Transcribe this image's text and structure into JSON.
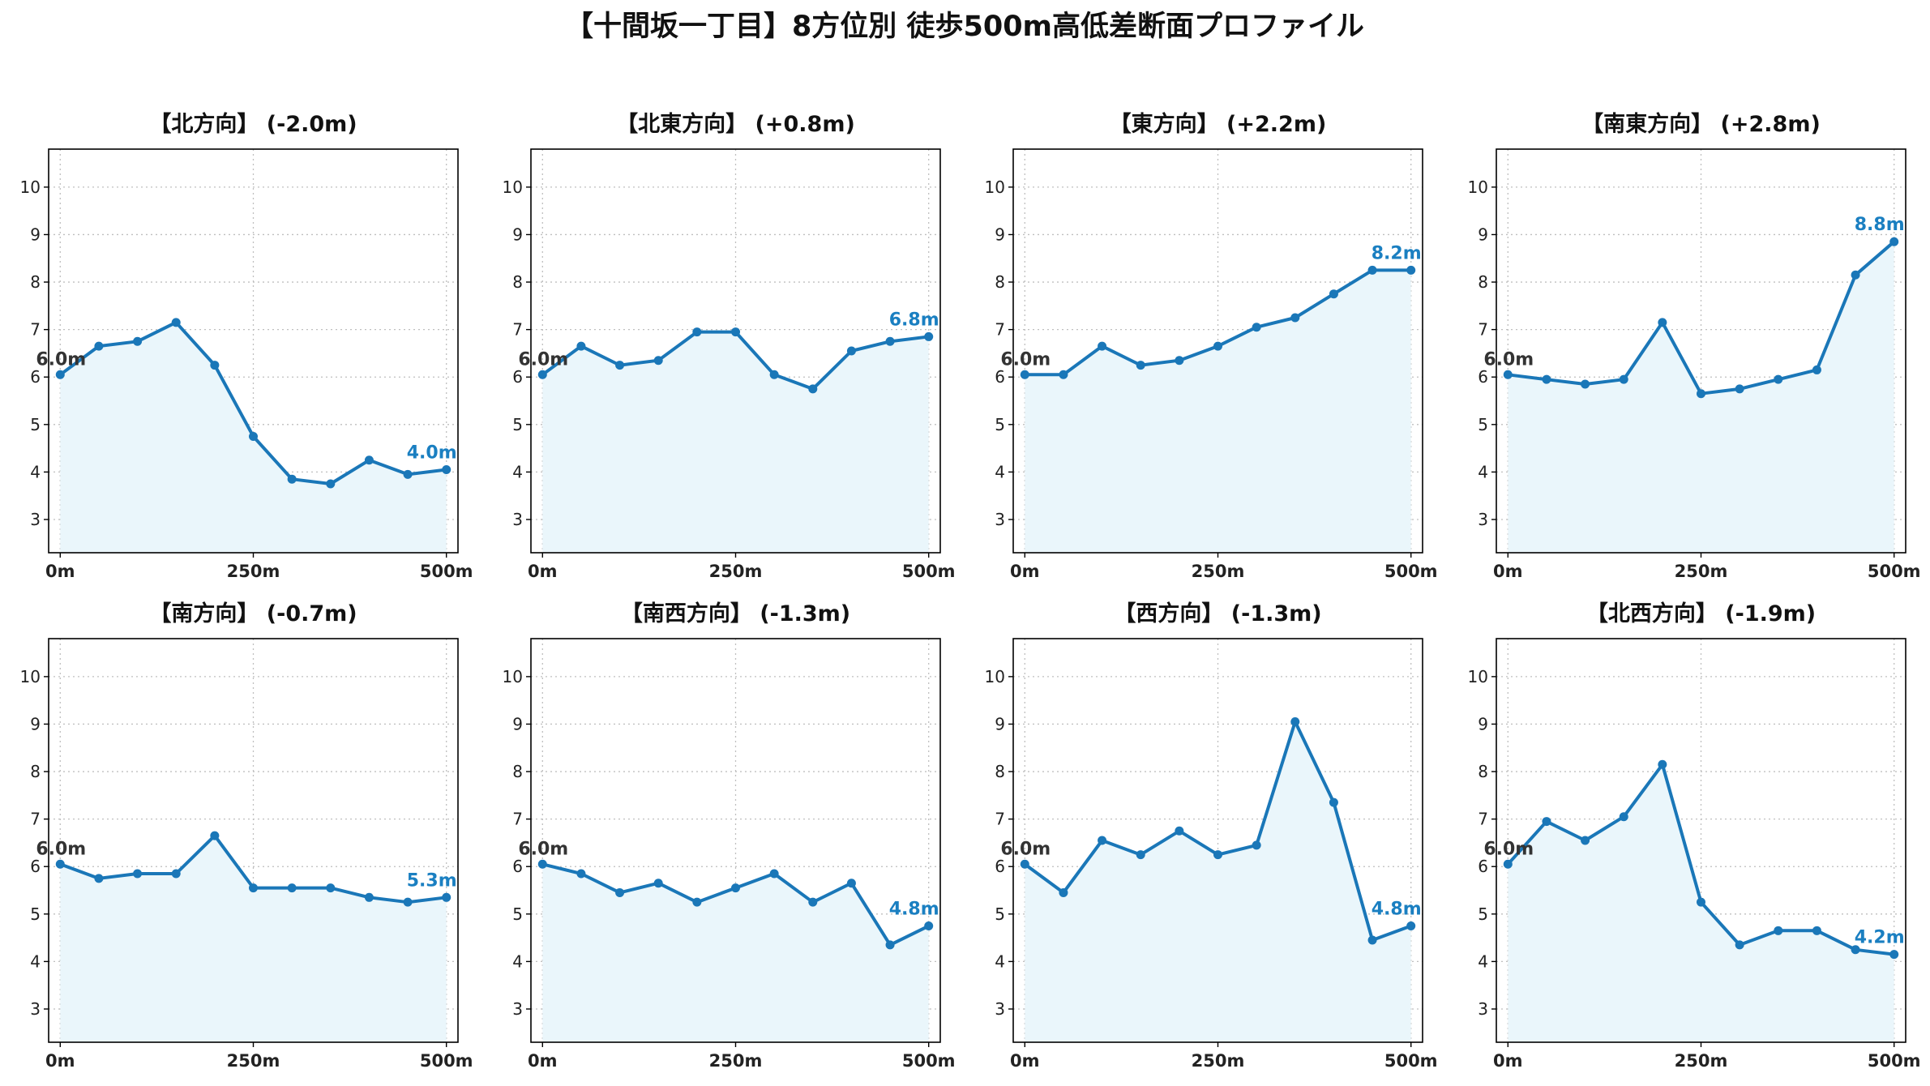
{
  "figure": {
    "title": "【十間坂一丁目】8方位別 徒歩500m高低差断面プロファイル"
  },
  "chart_data": [
    {
      "type": "line",
      "title": "【北方向】 (-2.0m)",
      "x": [
        0,
        50,
        100,
        150,
        200,
        250,
        300,
        350,
        400,
        450,
        500
      ],
      "xticks": [
        0,
        250,
        500
      ],
      "xtick_labels": [
        "0m",
        "250m",
        "500m"
      ],
      "yticks": [
        3,
        4,
        5,
        6,
        7,
        8,
        9,
        10
      ],
      "ylim": [
        2.3,
        10.8
      ],
      "xlim": [
        -15,
        515
      ],
      "grid": true,
      "series": [
        {
          "values": [
            6.05,
            6.65,
            6.75,
            7.15,
            6.25,
            4.75,
            3.85,
            3.75,
            4.25,
            3.95,
            4.05
          ]
        }
      ],
      "start_label": "6.0m",
      "end_label": "4.0m"
    },
    {
      "type": "line",
      "title": "【北東方向】 (+0.8m)",
      "x": [
        0,
        50,
        100,
        150,
        200,
        250,
        300,
        350,
        400,
        450,
        500
      ],
      "xticks": [
        0,
        250,
        500
      ],
      "xtick_labels": [
        "0m",
        "250m",
        "500m"
      ],
      "yticks": [
        3,
        4,
        5,
        6,
        7,
        8,
        9,
        10
      ],
      "ylim": [
        2.3,
        10.8
      ],
      "xlim": [
        -15,
        515
      ],
      "grid": true,
      "series": [
        {
          "values": [
            6.05,
            6.65,
            6.25,
            6.35,
            6.95,
            6.95,
            6.05,
            5.75,
            6.55,
            6.75,
            6.85
          ]
        }
      ],
      "start_label": "6.0m",
      "end_label": "6.8m"
    },
    {
      "type": "line",
      "title": "【東方向】 (+2.2m)",
      "x": [
        0,
        50,
        100,
        150,
        200,
        250,
        300,
        350,
        400,
        450,
        500
      ],
      "xticks": [
        0,
        250,
        500
      ],
      "xtick_labels": [
        "0m",
        "250m",
        "500m"
      ],
      "yticks": [
        3,
        4,
        5,
        6,
        7,
        8,
        9,
        10
      ],
      "ylim": [
        2.3,
        10.8
      ],
      "xlim": [
        -15,
        515
      ],
      "grid": true,
      "series": [
        {
          "values": [
            6.05,
            6.05,
            6.65,
            6.25,
            6.35,
            6.65,
            7.05,
            7.25,
            7.75,
            8.25,
            8.25
          ]
        }
      ],
      "start_label": "6.0m",
      "end_label": "8.2m"
    },
    {
      "type": "line",
      "title": "【南東方向】 (+2.8m)",
      "x": [
        0,
        50,
        100,
        150,
        200,
        250,
        300,
        350,
        400,
        450,
        500
      ],
      "xticks": [
        0,
        250,
        500
      ],
      "xtick_labels": [
        "0m",
        "250m",
        "500m"
      ],
      "yticks": [
        3,
        4,
        5,
        6,
        7,
        8,
        9,
        10
      ],
      "ylim": [
        2.3,
        10.8
      ],
      "xlim": [
        -15,
        515
      ],
      "grid": true,
      "series": [
        {
          "values": [
            6.05,
            5.95,
            5.85,
            5.95,
            7.15,
            5.65,
            5.75,
            5.95,
            6.15,
            8.15,
            8.85
          ]
        }
      ],
      "start_label": "6.0m",
      "end_label": "8.8m"
    },
    {
      "type": "line",
      "title": "【南方向】 (-0.7m)",
      "x": [
        0,
        50,
        100,
        150,
        200,
        250,
        300,
        350,
        400,
        450,
        500
      ],
      "xticks": [
        0,
        250,
        500
      ],
      "xtick_labels": [
        "0m",
        "250m",
        "500m"
      ],
      "yticks": [
        3,
        4,
        5,
        6,
        7,
        8,
        9,
        10
      ],
      "ylim": [
        2.3,
        10.8
      ],
      "xlim": [
        -15,
        515
      ],
      "grid": true,
      "series": [
        {
          "values": [
            6.05,
            5.75,
            5.85,
            5.85,
            6.65,
            5.55,
            5.55,
            5.55,
            5.35,
            5.25,
            5.35
          ]
        }
      ],
      "start_label": "6.0m",
      "end_label": "5.3m"
    },
    {
      "type": "line",
      "title": "【南西方向】 (-1.3m)",
      "x": [
        0,
        50,
        100,
        150,
        200,
        250,
        300,
        350,
        400,
        450,
        500
      ],
      "xticks": [
        0,
        250,
        500
      ],
      "xtick_labels": [
        "0m",
        "250m",
        "500m"
      ],
      "yticks": [
        3,
        4,
        5,
        6,
        7,
        8,
        9,
        10
      ],
      "ylim": [
        2.3,
        10.8
      ],
      "xlim": [
        -15,
        515
      ],
      "grid": true,
      "series": [
        {
          "values": [
            6.05,
            5.85,
            5.45,
            5.65,
            5.25,
            5.55,
            5.85,
            5.25,
            5.65,
            4.35,
            4.75
          ]
        }
      ],
      "start_label": "6.0m",
      "end_label": "4.8m"
    },
    {
      "type": "line",
      "title": "【西方向】 (-1.3m)",
      "x": [
        0,
        50,
        100,
        150,
        200,
        250,
        300,
        350,
        400,
        450,
        500
      ],
      "xticks": [
        0,
        250,
        500
      ],
      "xtick_labels": [
        "0m",
        "250m",
        "500m"
      ],
      "yticks": [
        3,
        4,
        5,
        6,
        7,
        8,
        9,
        10
      ],
      "ylim": [
        2.3,
        10.8
      ],
      "xlim": [
        -15,
        515
      ],
      "grid": true,
      "series": [
        {
          "values": [
            6.05,
            5.45,
            6.55,
            6.25,
            6.75,
            6.25,
            6.45,
            9.05,
            7.35,
            4.45,
            4.75
          ]
        }
      ],
      "start_label": "6.0m",
      "end_label": "4.8m"
    },
    {
      "type": "line",
      "title": "【北西方向】 (-1.9m)",
      "x": [
        0,
        50,
        100,
        150,
        200,
        250,
        300,
        350,
        400,
        450,
        500
      ],
      "xticks": [
        0,
        250,
        500
      ],
      "xtick_labels": [
        "0m",
        "250m",
        "500m"
      ],
      "yticks": [
        3,
        4,
        5,
        6,
        7,
        8,
        9,
        10
      ],
      "ylim": [
        2.3,
        10.8
      ],
      "xlim": [
        -15,
        515
      ],
      "grid": true,
      "series": [
        {
          "values": [
            6.05,
            6.95,
            6.55,
            7.05,
            8.15,
            5.25,
            4.35,
            4.65,
            4.65,
            4.25,
            4.15
          ]
        }
      ],
      "start_label": "6.0m",
      "end_label": "4.2m"
    }
  ]
}
